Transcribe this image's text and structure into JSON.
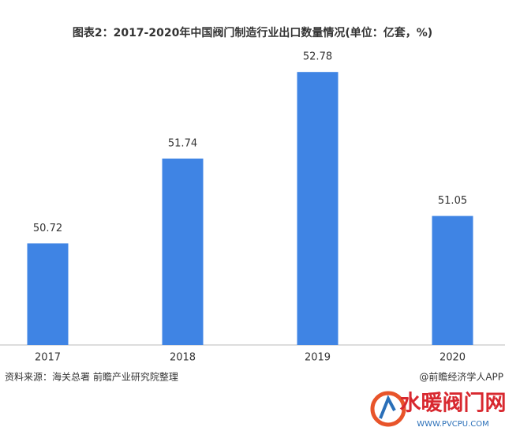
{
  "chart_data": {
    "type": "bar",
    "title": "图表2：2017-2020年中国阀门制造行业出口数量情况(单位：亿套，%)",
    "categories": [
      "2017",
      "2018",
      "2019",
      "2020"
    ],
    "values": [
      50.72,
      51.74,
      52.78,
      51.05
    ],
    "color": "#3f84e4",
    "ylim": [
      49.5,
      53
    ],
    "source": "资料来源：海关总署 前瞻产业研究院整理",
    "credit": "@前瞻经济学人APP",
    "logo": {
      "name": "水暖阀门网",
      "url": "WWW.PVCPU.COM"
    }
  }
}
